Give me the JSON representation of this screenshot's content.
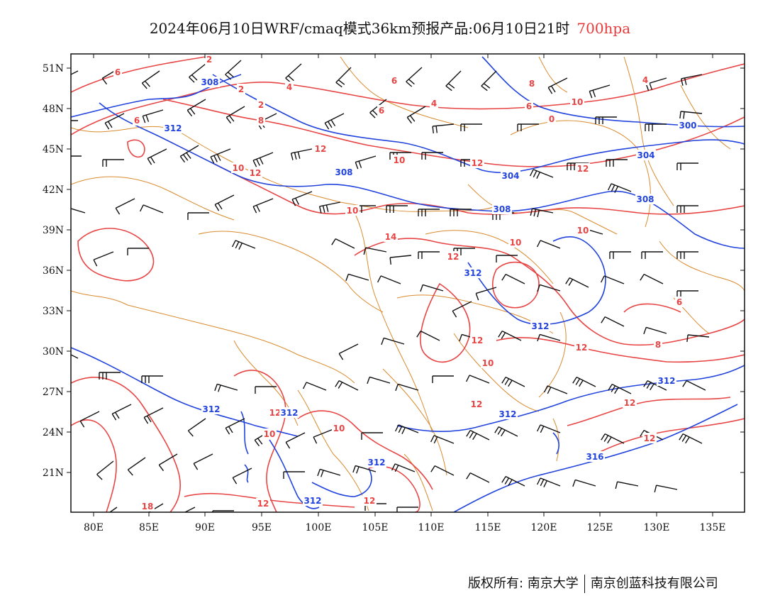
{
  "title": {
    "main": "2024年06月10日WRF/cmaq模式36km预报产品:06月10日21时",
    "level": "700hpa"
  },
  "axes": {
    "lat_labels": [
      "51N",
      "48N",
      "45N",
      "42N",
      "39N",
      "36N",
      "33N",
      "30N",
      "27N",
      "24N",
      "21N"
    ],
    "lon_labels": [
      "80E",
      "85E",
      "90E",
      "95E",
      "100E",
      "105E",
      "110E",
      "115E",
      "120E",
      "125E",
      "130E",
      "135E"
    ]
  },
  "contours": {
    "temperature_color": "#e84545",
    "height_color": "#2244dd",
    "temperature_labels": [
      "2",
      "6",
      "4",
      "6",
      "8",
      "2",
      "2",
      "6",
      "4",
      "10",
      "6",
      "6",
      "8",
      "4",
      "0",
      "12",
      "10",
      "12",
      "10",
      "12",
      "12",
      "10",
      "14",
      "12",
      "10",
      "10",
      "12",
      "6",
      "8",
      "10",
      "12",
      "12",
      "12",
      "12",
      "10",
      "10",
      "12",
      "12",
      "18",
      "12"
    ],
    "height_labels": [
      "308",
      "312",
      "308",
      "304",
      "308",
      "304",
      "308",
      "300",
      "312",
      "312",
      "312",
      "312",
      "312",
      "312",
      "316",
      "312",
      "312"
    ]
  },
  "boundary_color": "#d98b2e",
  "footer": {
    "left": "版权所有: 南京大学",
    "right": "南京创蓝科技有限公司"
  }
}
